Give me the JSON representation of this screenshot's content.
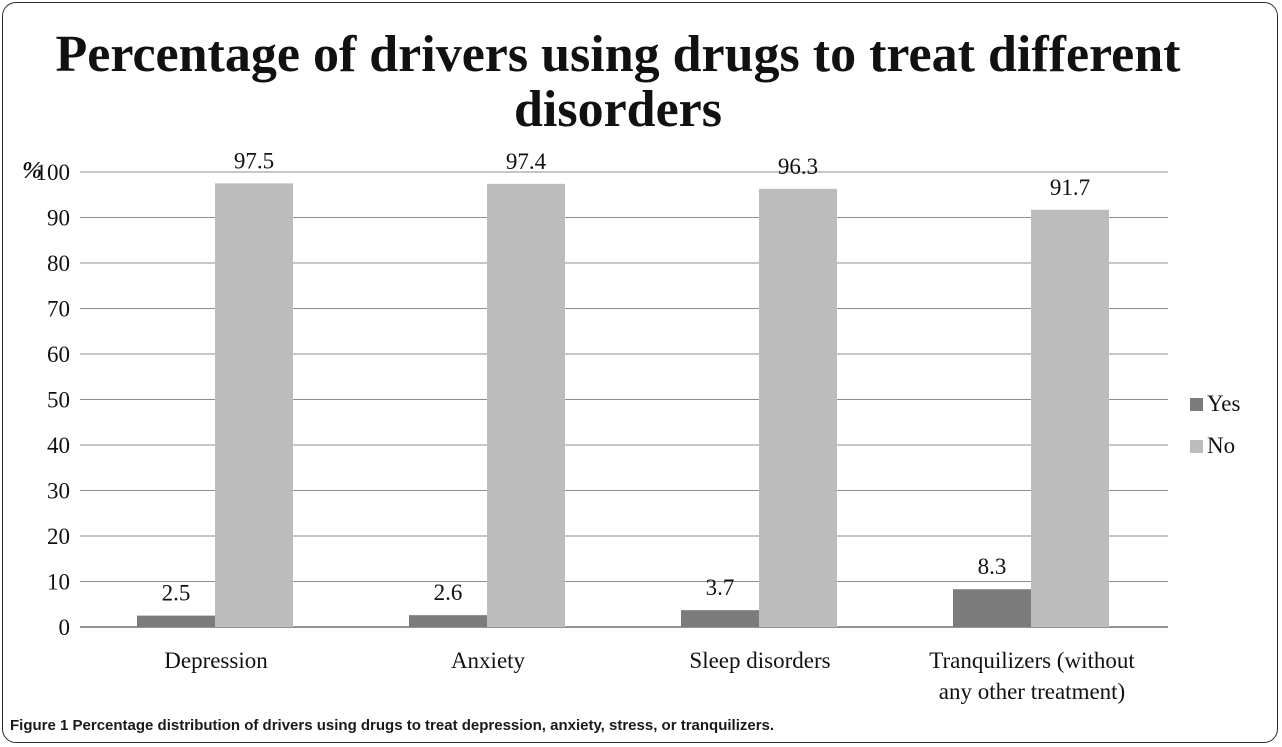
{
  "chart_data": {
    "type": "bar",
    "title_lines": [
      "Percentage of drivers using drugs to treat different",
      "disorders"
    ],
    "ylabel": "%",
    "xlabel": "",
    "ylim": [
      0,
      100
    ],
    "yticks": [
      0,
      10,
      20,
      30,
      40,
      50,
      60,
      70,
      80,
      90,
      100
    ],
    "grid": true,
    "legend_position": "right",
    "categories": [
      [
        "Depression"
      ],
      [
        "Anxiety"
      ],
      [
        "Sleep disorders"
      ],
      [
        "Tranquilizers (without",
        "any other treatment)"
      ]
    ],
    "series": [
      {
        "name": "Yes",
        "color": "#7b7b7b",
        "values": [
          2.5,
          2.6,
          3.7,
          8.3
        ]
      },
      {
        "name": "No",
        "color": "#bcbcbc",
        "values": [
          97.5,
          97.4,
          96.3,
          91.7
        ]
      }
    ]
  },
  "caption": "Figure 1 Percentage distribution of drivers using drugs to treat depression, anxiety, stress, or tranquilizers."
}
